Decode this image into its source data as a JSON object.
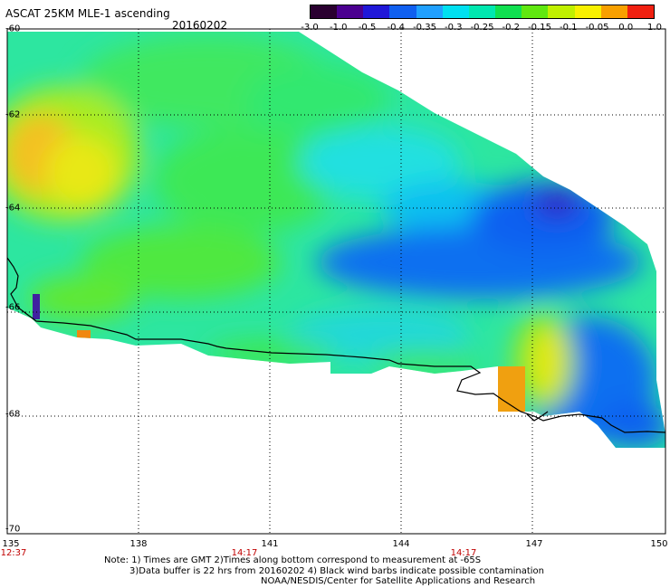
{
  "header": {
    "title": "ASCAT 25KM MLE-1 ascending",
    "date": "20160202"
  },
  "colorbar": {
    "labels": [
      "-3.0",
      "-1.0",
      "-0.5",
      "-0.4",
      "-0.35",
      "-0.3",
      "-0.25",
      "-0.2",
      "-0.15",
      "-0.1",
      "-0.05",
      "0.0",
      "1.0"
    ],
    "colors": [
      "#2a0030",
      "#4b0090",
      "#2018d8",
      "#1060f0",
      "#20a0ff",
      "#00e0f0",
      "#00e8b0",
      "#10e050",
      "#60e810",
      "#c0f000",
      "#f8f000",
      "#f8a000",
      "#f02010"
    ]
  },
  "axes": {
    "lat_labels": [
      "-60",
      "-62",
      "-64",
      "-66",
      "-68",
      "-70"
    ],
    "lon_labels": [
      "135",
      "138",
      "141",
      "144",
      "147",
      "150"
    ]
  },
  "times": [
    "12:37",
    "14:17",
    "14:17"
  ],
  "notes": [
    "Note: 1) Times are GMT 2)Times along bottom correspond to measurement at -65S",
    "3)Data buffer is 22 hrs from 20160202 4) Black wind barbs indicate possible contamination",
    "NOAA/NESDIS/Center for Satellite Applications and Research"
  ]
}
